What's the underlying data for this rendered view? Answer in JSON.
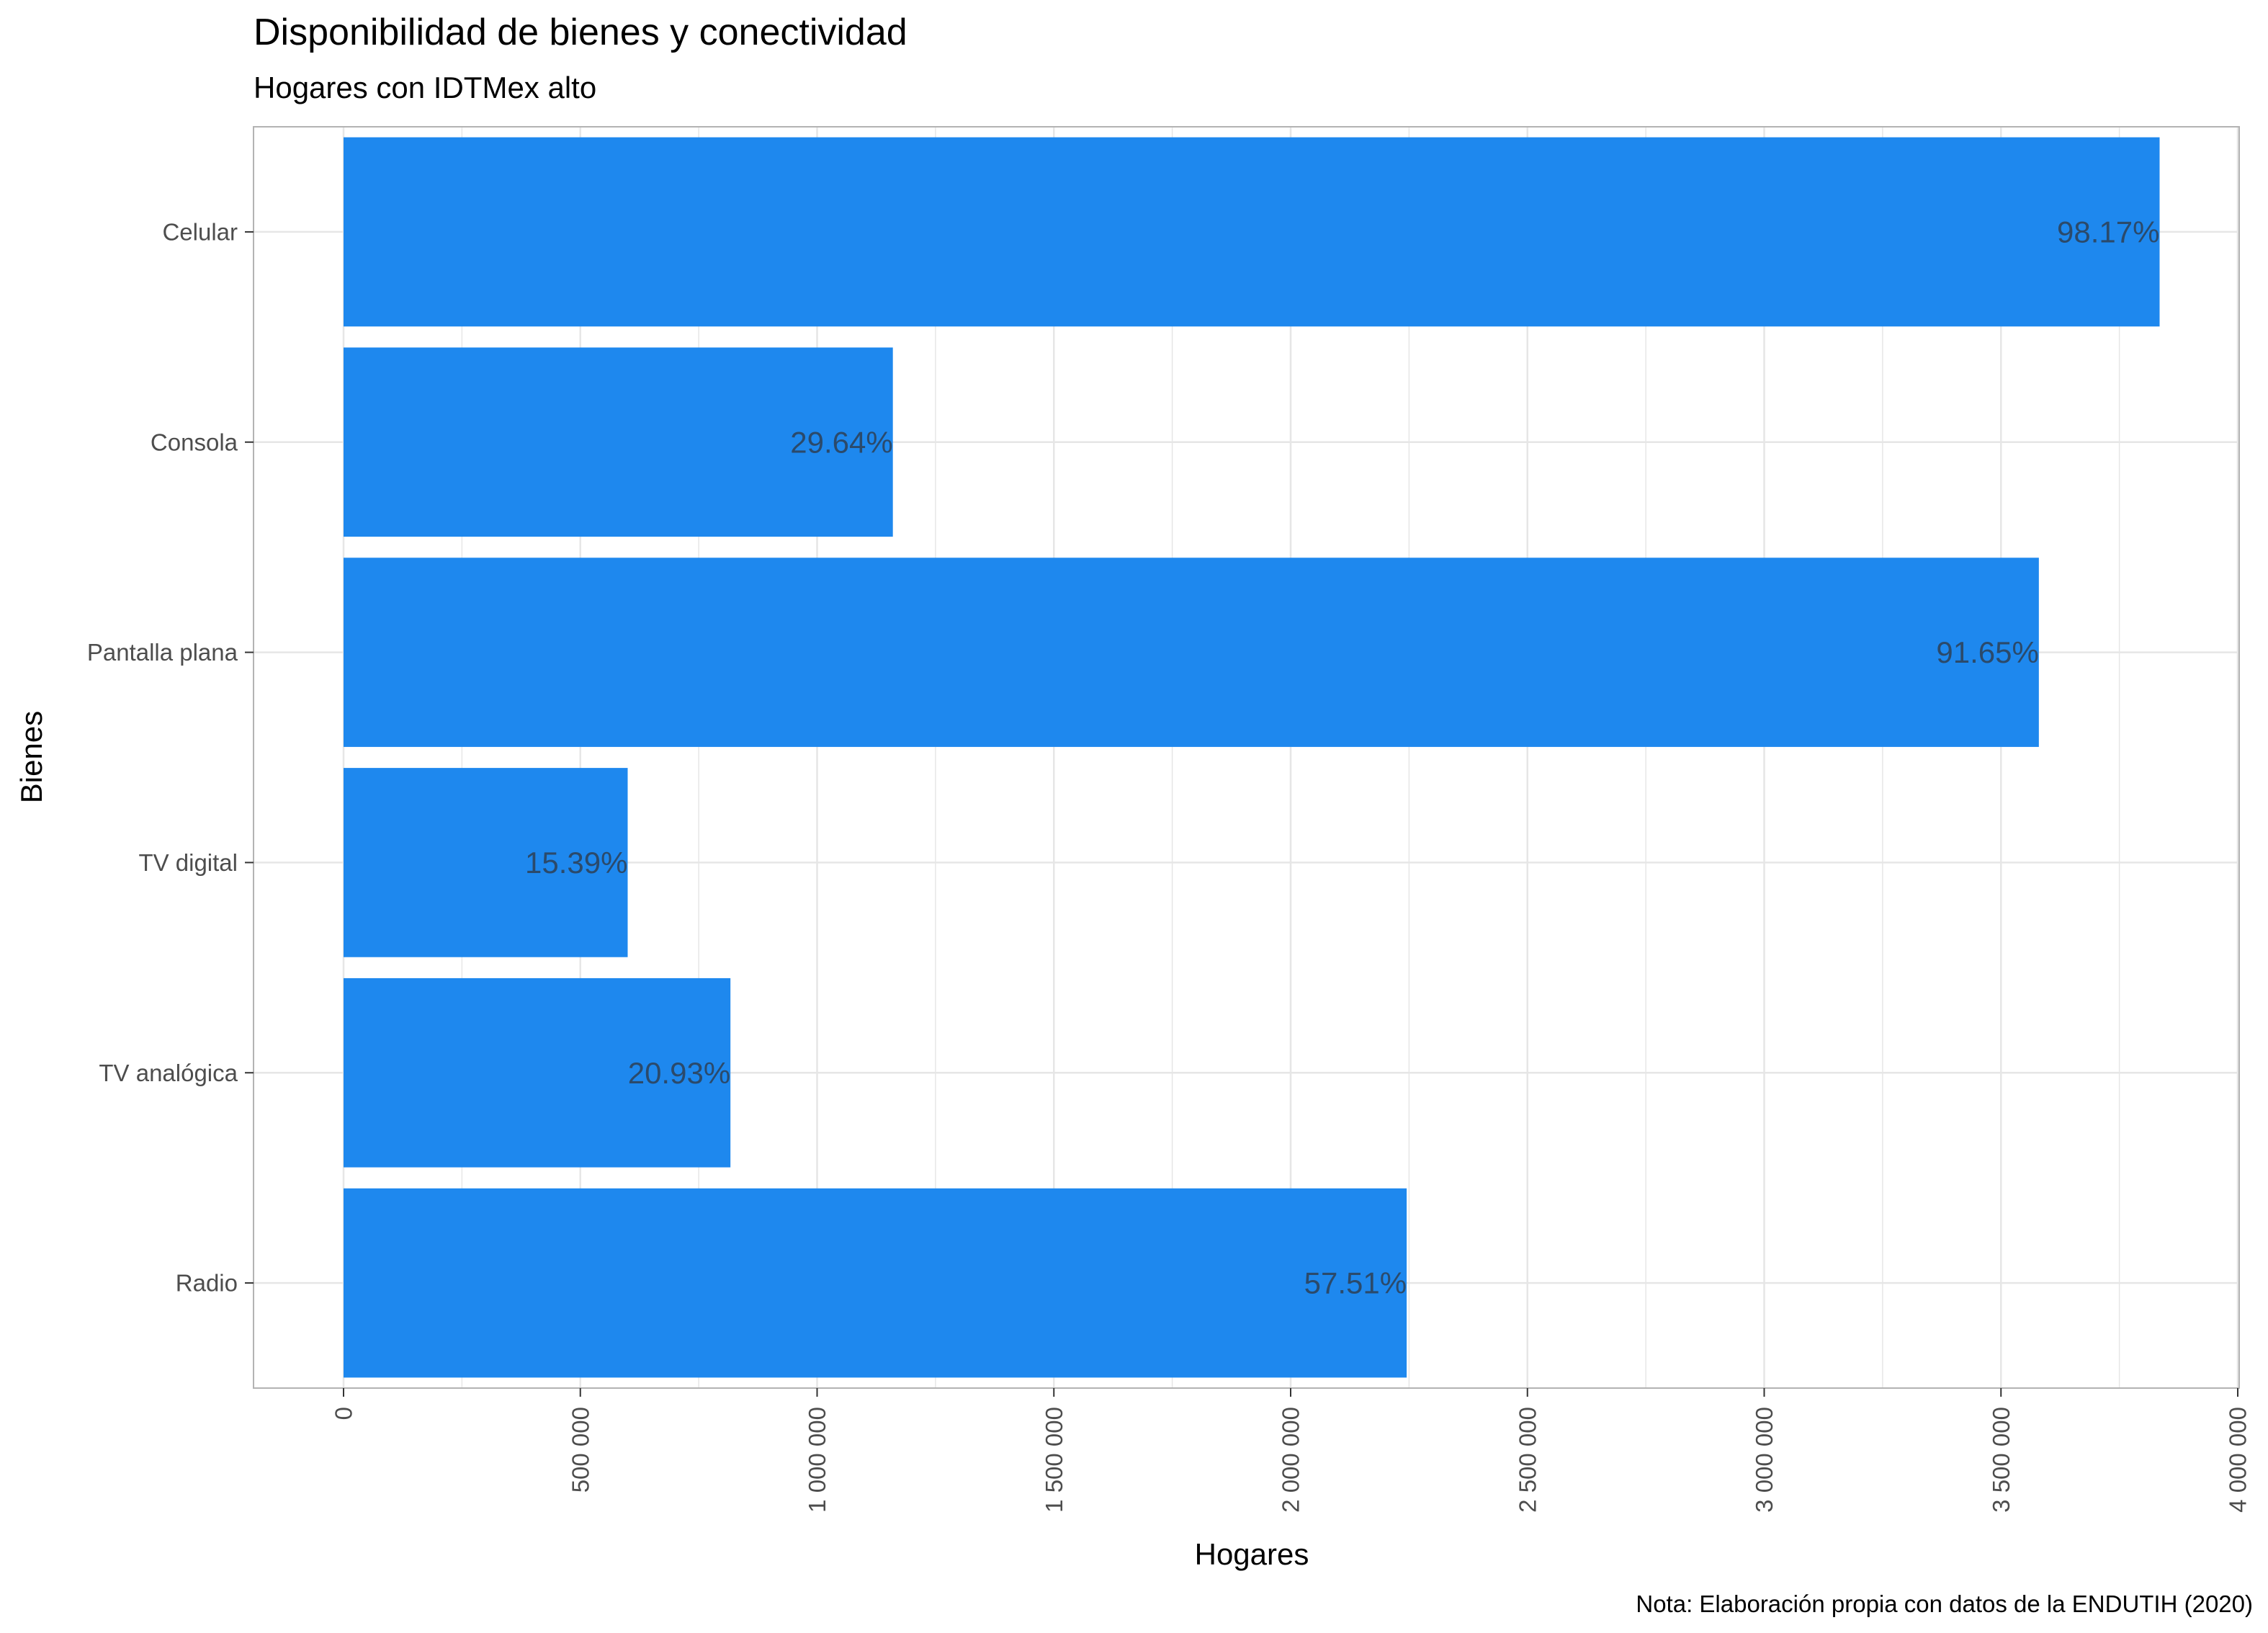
{
  "chart_data": {
    "type": "bar",
    "orientation": "horizontal",
    "title": "Disponibilidad de bienes y conectividad",
    "subtitle": "Hogares con IDTMex alto",
    "xlabel": "Hogares",
    "ylabel": "Bienes",
    "caption": "Nota: Elaboración propia con datos de la ENDUTIH (2020)",
    "categories": [
      "Celular",
      "Consola",
      "Pantalla plana",
      "TV digital",
      "TV analógica",
      "Radio"
    ],
    "values": [
      3835000,
      1160000,
      3580000,
      600000,
      817000,
      2245000
    ],
    "data_labels": [
      "98.17%",
      "29.64%",
      "91.65%",
      "15.39%",
      "20.93%",
      "57.51%"
    ],
    "xlim": [
      0,
      4000000
    ],
    "x_ticks": [
      0,
      500000,
      1000000,
      1500000,
      2000000,
      2500000,
      3000000,
      3500000,
      4000000
    ],
    "x_tick_labels": [
      "0",
      "500 000",
      "1 000 000",
      "1 500 000",
      "2 000 000",
      "2 500 000",
      "3 000 000",
      "3 500 000",
      "4 000 000"
    ],
    "grid": true,
    "legend": "none",
    "colors": {
      "bar": "#1e88ee",
      "data_label": "#2b4a6b",
      "grid": "#e6e6e6",
      "panel_border": "#b3b3b3",
      "tick": "#333333"
    }
  }
}
